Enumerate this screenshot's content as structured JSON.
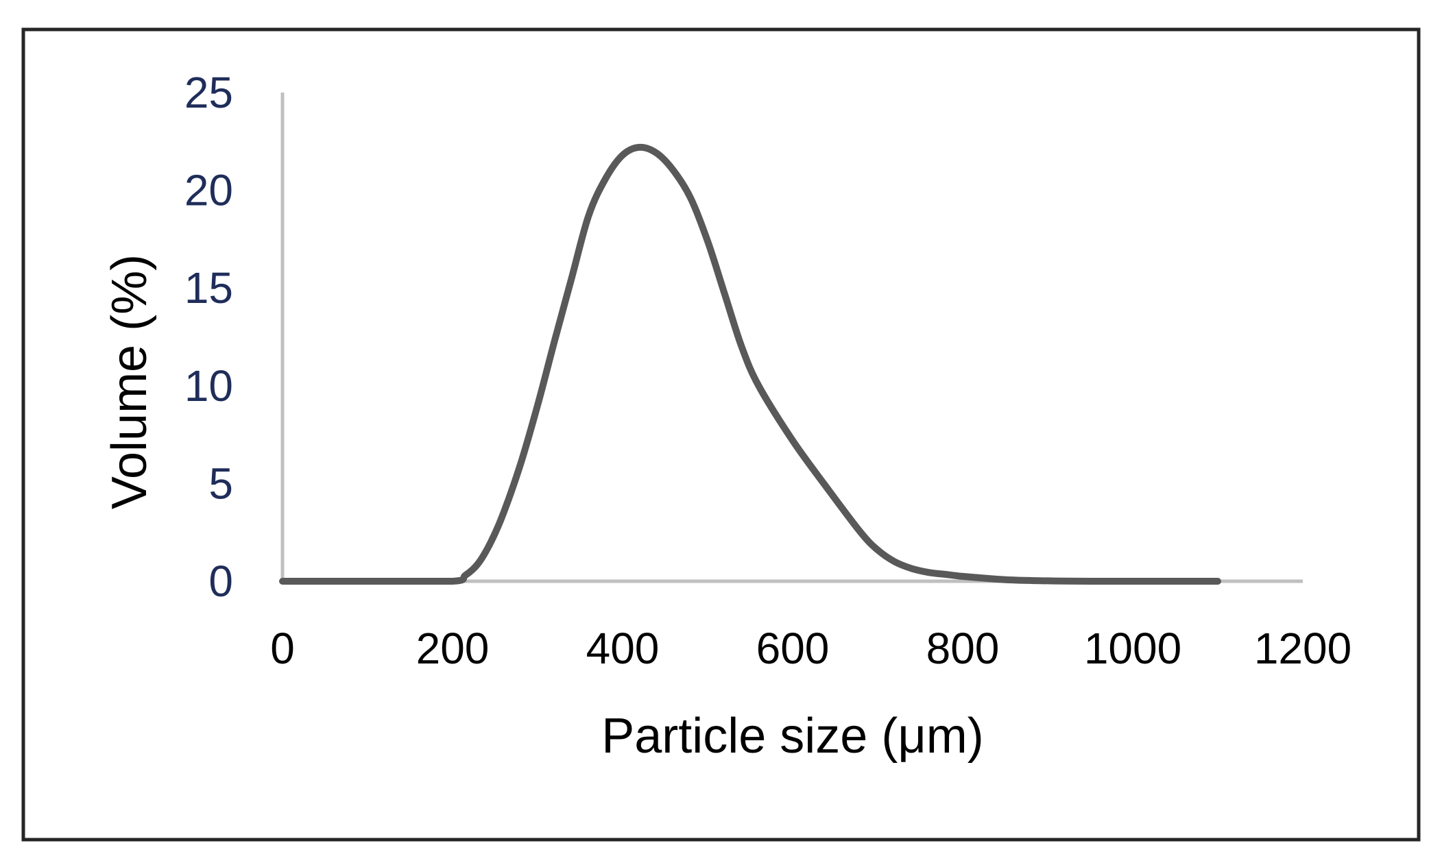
{
  "chart_data": {
    "type": "line",
    "title": "",
    "xlabel": "Particle size (μm)",
    "ylabel": "Volume (%)",
    "xlim": [
      0,
      1200
    ],
    "ylim": [
      0,
      25
    ],
    "xticks": [
      0,
      200,
      400,
      600,
      800,
      1000,
      1200
    ],
    "yticks": [
      0,
      5,
      10,
      15,
      20,
      25
    ],
    "grid": false,
    "legend": "none",
    "colors": {
      "line": "#595959",
      "axis": "#bfbfbf",
      "frame": "#262626",
      "ytick_text": "#1f2d5a"
    },
    "series": [
      {
        "x": [
          0,
          100,
          200,
          215,
          230,
          245,
          260,
          280,
          300,
          320,
          340,
          360,
          380,
          400,
          420,
          440,
          460,
          480,
          500,
          520,
          540,
          560,
          600,
          640,
          680,
          700,
          720,
          740,
          760,
          780,
          800,
          850,
          900,
          950,
          1000,
          1100
        ],
        "values": [
          0,
          0,
          0,
          0.3,
          0.9,
          2.0,
          3.5,
          6.0,
          9.0,
          12.3,
          15.5,
          18.7,
          20.6,
          21.8,
          22.2,
          21.9,
          21.0,
          19.6,
          17.4,
          14.7,
          12.0,
          10.0,
          7.2,
          4.8,
          2.5,
          1.6,
          1.0,
          0.65,
          0.45,
          0.35,
          0.25,
          0.08,
          0.02,
          0,
          0,
          0
        ]
      }
    ]
  }
}
